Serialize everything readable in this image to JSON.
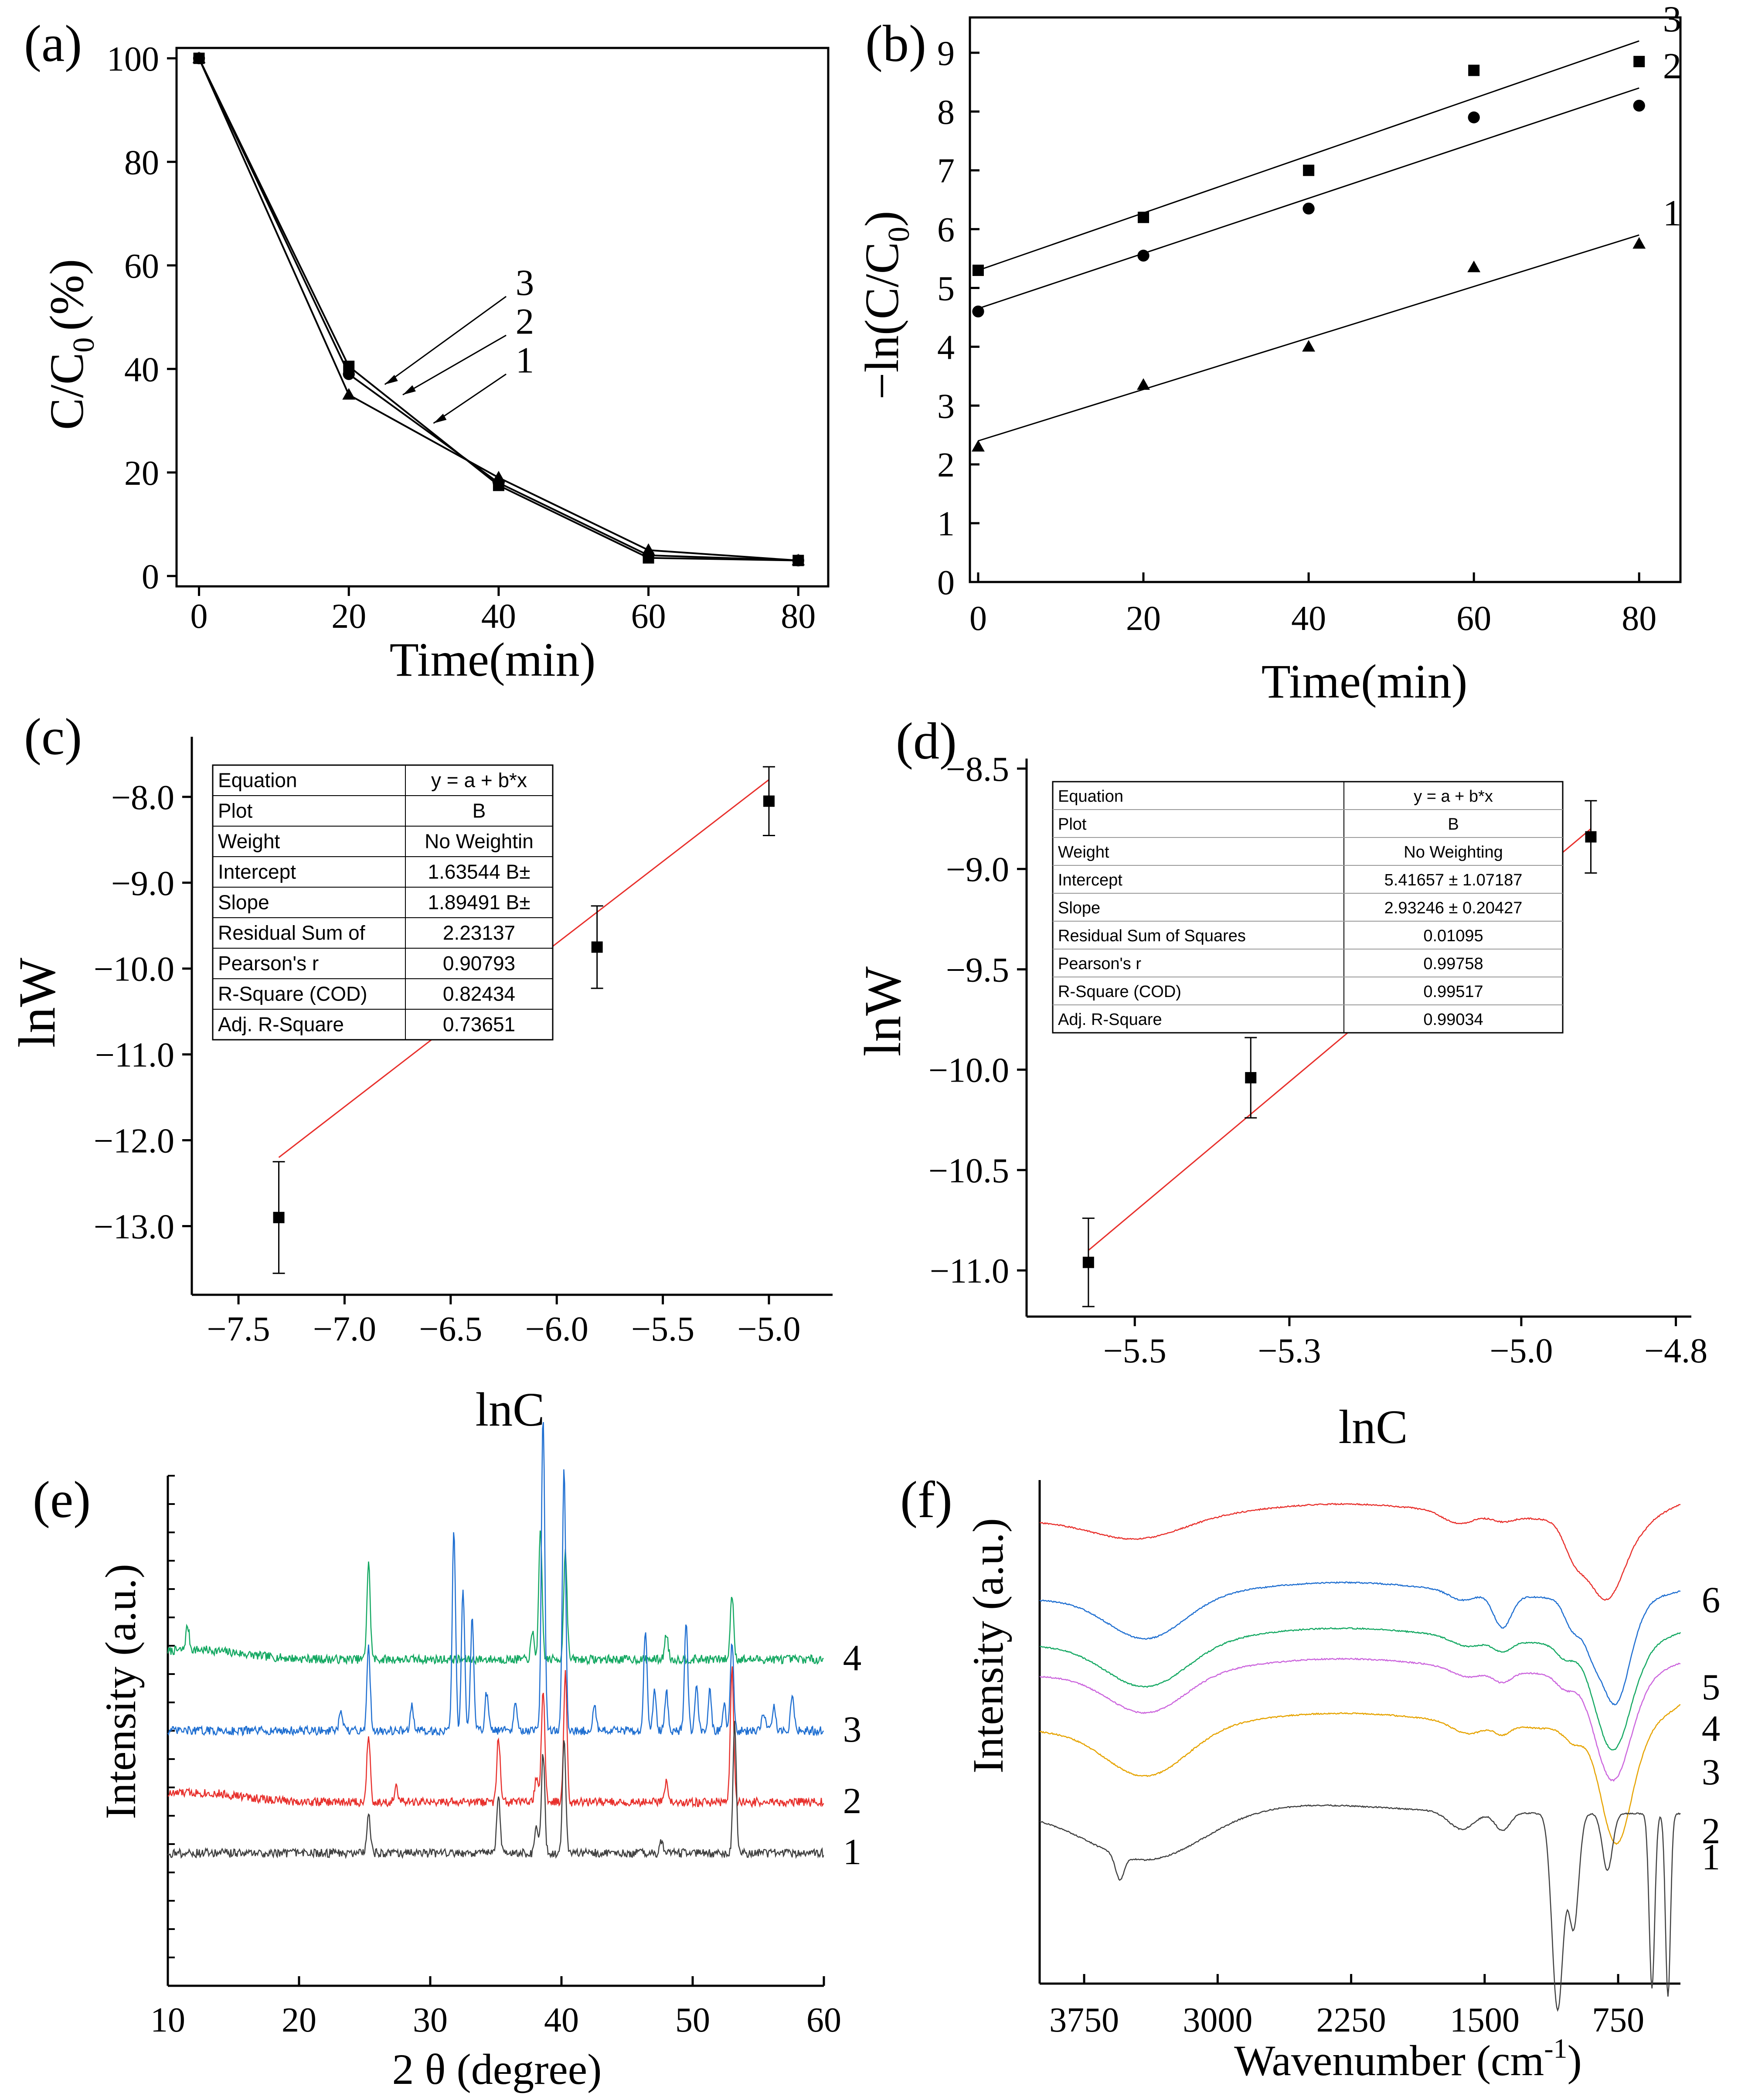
{
  "figure": {
    "colors": {
      "axis": "#000000",
      "fit": "#e8302c",
      "c1": "#404040",
      "c2": "#e8302c",
      "c3": "#1f6fd1",
      "c4": "#14a862",
      "c5": "#1f6fd1",
      "c6": "#e8302c",
      "f3": "#cc66dd",
      "f2": "#e6a300"
    }
  },
  "chart_data": [
    {
      "panel": "(a)",
      "type": "line",
      "xlabel": "Time(min)",
      "ylabel": "C/C0 (%)",
      "ylabel_main": "C/C",
      "ylabel_sub": "0",
      "ylabel_unit": "(%)",
      "xlim": [
        -3,
        84
      ],
      "ylim": [
        -2,
        102
      ],
      "xticks": [
        0,
        20,
        40,
        60,
        80
      ],
      "yticks": [
        0,
        20,
        40,
        60,
        80,
        100
      ],
      "x": [
        0,
        20,
        40,
        60,
        80
      ],
      "series": [
        {
          "name": "1",
          "marker": "triangle",
          "values": [
            100,
            35,
            19,
            5,
            3
          ]
        },
        {
          "name": "2",
          "marker": "circle",
          "values": [
            100,
            39,
            18,
            4,
            3
          ]
        },
        {
          "name": "3",
          "marker": "square",
          "values": [
            100,
            40.5,
            17.5,
            3.5,
            3
          ]
        }
      ],
      "labels": [
        "3",
        "2",
        "1"
      ]
    },
    {
      "panel": "(b)",
      "type": "scatter",
      "xlabel": "Time(min)",
      "ylabel": "-ln(C/C0)",
      "ylabel_main": "−ln(C/C",
      "ylabel_sub": "0",
      "ylabel_close": ")",
      "xlim": [
        -1,
        85
      ],
      "ylim": [
        0,
        9.6
      ],
      "xticks": [
        0,
        20,
        40,
        60,
        80
      ],
      "yticks": [
        0,
        1,
        2,
        3,
        4,
        5,
        6,
        7,
        8,
        9
      ],
      "x": [
        0,
        20,
        40,
        60,
        80
      ],
      "series": [
        {
          "name": "3",
          "marker": "square",
          "values": [
            5.3,
            6.2,
            7.0,
            8.7,
            8.85
          ],
          "fit": [
            5.3,
            9.2
          ]
        },
        {
          "name": "2",
          "marker": "circle",
          "values": [
            4.6,
            5.55,
            6.35,
            7.9,
            8.1
          ],
          "fit": [
            4.65,
            8.4
          ]
        },
        {
          "name": "1",
          "marker": "triangle",
          "values": [
            2.3,
            3.35,
            4.0,
            5.35,
            5.75
          ],
          "fit": [
            2.4,
            5.9
          ]
        }
      ]
    },
    {
      "panel": "(c)",
      "type": "scatter",
      "xlabel": "lnC",
      "ylabel": "lnW",
      "xlim": [
        -7.72,
        -4.7
      ],
      "ylim": [
        -13.8,
        -7.3
      ],
      "xticks": [
        -7.5,
        -7.0,
        -6.5,
        -6.0,
        -5.5,
        -5.0
      ],
      "xtick_labels": [
        "−7.5",
        "−7.0",
        "−6.5",
        "−6.0",
        "−5.5",
        "−5.0"
      ],
      "yticks": [
        -8.0,
        -9.0,
        -10.0,
        -11.0,
        -12.0,
        -13.0
      ],
      "ytick_labels": [
        "−8.0",
        "−9.0",
        "−10.0",
        "−11.0",
        "−12.0",
        "−13.0"
      ],
      "points": [
        {
          "x": -7.31,
          "y": -12.9,
          "err": 0.65
        },
        {
          "x": -5.81,
          "y": -9.75,
          "err": 0.48
        },
        {
          "x": -5.0,
          "y": -8.05,
          "err": 0.4
        }
      ],
      "fit": {
        "x0": -7.31,
        "y0": -12.2,
        "x1": -5.0,
        "y1": -7.8
      },
      "fit_table": [
        [
          "Equation",
          "y = a + b*x"
        ],
        [
          "Plot",
          "B"
        ],
        [
          "Weight",
          "No Weightin"
        ],
        [
          "Intercept",
          "1.63544 B±"
        ],
        [
          "Slope",
          "1.89491 B±"
        ],
        [
          "Residual Sum of",
          "2.23137"
        ],
        [
          "Pearson's r",
          "0.90793"
        ],
        [
          "R-Square (COD)",
          "0.82434"
        ],
        [
          "Adj. R-Square",
          "0.73651"
        ]
      ]
    },
    {
      "panel": "(d)",
      "type": "scatter",
      "xlabel": "lnC",
      "ylabel": "lnW",
      "xlim": [
        -5.64,
        -4.78
      ],
      "ylim": [
        -11.23,
        -8.45
      ],
      "xticks": [
        -5.5,
        -5.3,
        -5.0,
        -4.8
      ],
      "xtick_labels": [
        "−5.5",
        "−5.3",
        "−5.0",
        "−4.8"
      ],
      "yticks": [
        -8.5,
        -9.0,
        -9.5,
        -10.0,
        -10.5,
        -11.0
      ],
      "ytick_labels": [
        "−8.5",
        "−9.0",
        "−9.5",
        "−10.0",
        "−10.5",
        "−11.0"
      ],
      "points": [
        {
          "x": -5.56,
          "y": -10.96,
          "err": 0.22
        },
        {
          "x": -5.35,
          "y": -10.04,
          "err": 0.2
        },
        {
          "x": -4.91,
          "y": -8.84,
          "err": 0.18
        }
      ],
      "fit": {
        "x0": -5.56,
        "y0": -10.9,
        "x1": -4.91,
        "y1": -8.8
      },
      "fit_table": [
        [
          "Equation",
          "y = a + b*x"
        ],
        [
          "Plot",
          "B"
        ],
        [
          "Weight",
          "No Weighting"
        ],
        [
          "Intercept",
          "5.41657 ± 1.07187"
        ],
        [
          "Slope",
          "2.93246 ± 0.20427"
        ],
        [
          "Residual Sum of Squares",
          "0.01095"
        ],
        [
          "Pearson's r",
          "0.99758"
        ],
        [
          "R-Square (COD)",
          "0.99517"
        ],
        [
          "Adj. R-Square",
          "0.99034"
        ]
      ]
    },
    {
      "panel": "(e)",
      "type": "line",
      "xlabel": "2 θ (degree)",
      "ylabel": "Intensity (a.u.)",
      "xlim": [
        10,
        60
      ],
      "xticks": [
        10,
        20,
        30,
        40,
        50,
        60
      ],
      "series": [
        {
          "name": "4",
          "baseline": 0.64
        },
        {
          "name": "3",
          "baseline": 0.5
        },
        {
          "name": "2",
          "baseline": 0.36
        },
        {
          "name": "1",
          "baseline": 0.26
        }
      ]
    },
    {
      "panel": "(f)",
      "type": "line",
      "xlabel": "Wavenumber (cm-1)",
      "xlabel_main": "Wavenumber (cm",
      "xlabel_sup": "-1",
      "xlabel_close": ")",
      "ylabel": "Intensity (a.u.)",
      "xlim": [
        4000,
        400
      ],
      "xticks": [
        3750,
        3000,
        2250,
        1500,
        750
      ],
      "series": [
        {
          "name": "6"
        },
        {
          "name": "5"
        },
        {
          "name": "4"
        },
        {
          "name": "3"
        },
        {
          "name": "2"
        },
        {
          "name": "1"
        }
      ]
    }
  ]
}
